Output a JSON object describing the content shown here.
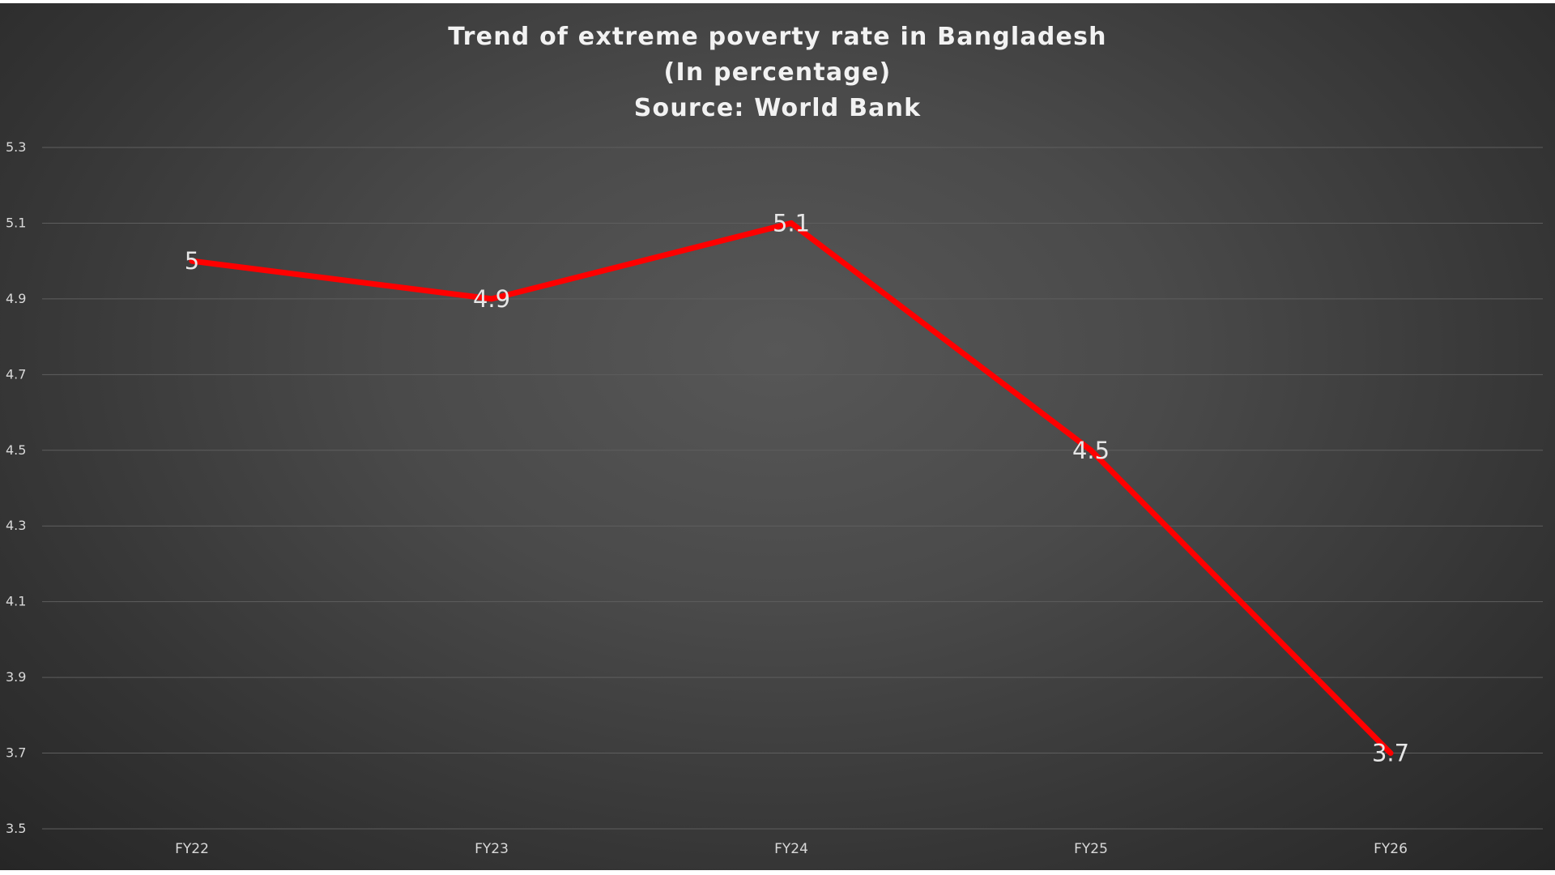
{
  "chart_data": {
    "type": "line",
    "title": [
      "Trend of extreme poverty rate in Bangladesh",
      "(In percentage)",
      "Source: World Bank"
    ],
    "categories": [
      "FY22",
      "FY23",
      "FY24",
      "FY25",
      "FY26"
    ],
    "series": [
      {
        "values": [
          5,
          4.9,
          5.1,
          4.5,
          3.7
        ],
        "color": "#ff0000"
      }
    ],
    "ylim": [
      3.5,
      5.3
    ],
    "yticks": [
      3.5,
      3.7,
      3.9,
      4.1,
      4.3,
      4.5,
      4.7,
      4.9,
      5.1,
      5.3
    ],
    "ytick_labels": [
      "3.5",
      "3.7",
      "3.9",
      "4.1",
      "4.3",
      "4.5",
      "4.7",
      "4.9",
      "5.1",
      "5.3"
    ],
    "data_labels": [
      "5",
      "4.9",
      "5.1",
      "4.5",
      "3.7"
    ],
    "grid": true,
    "legend": "none",
    "colors": {
      "background": "#404040",
      "gridline": "#5e5e5e",
      "text": "#d9d9d9",
      "line": "#ff0000"
    }
  }
}
